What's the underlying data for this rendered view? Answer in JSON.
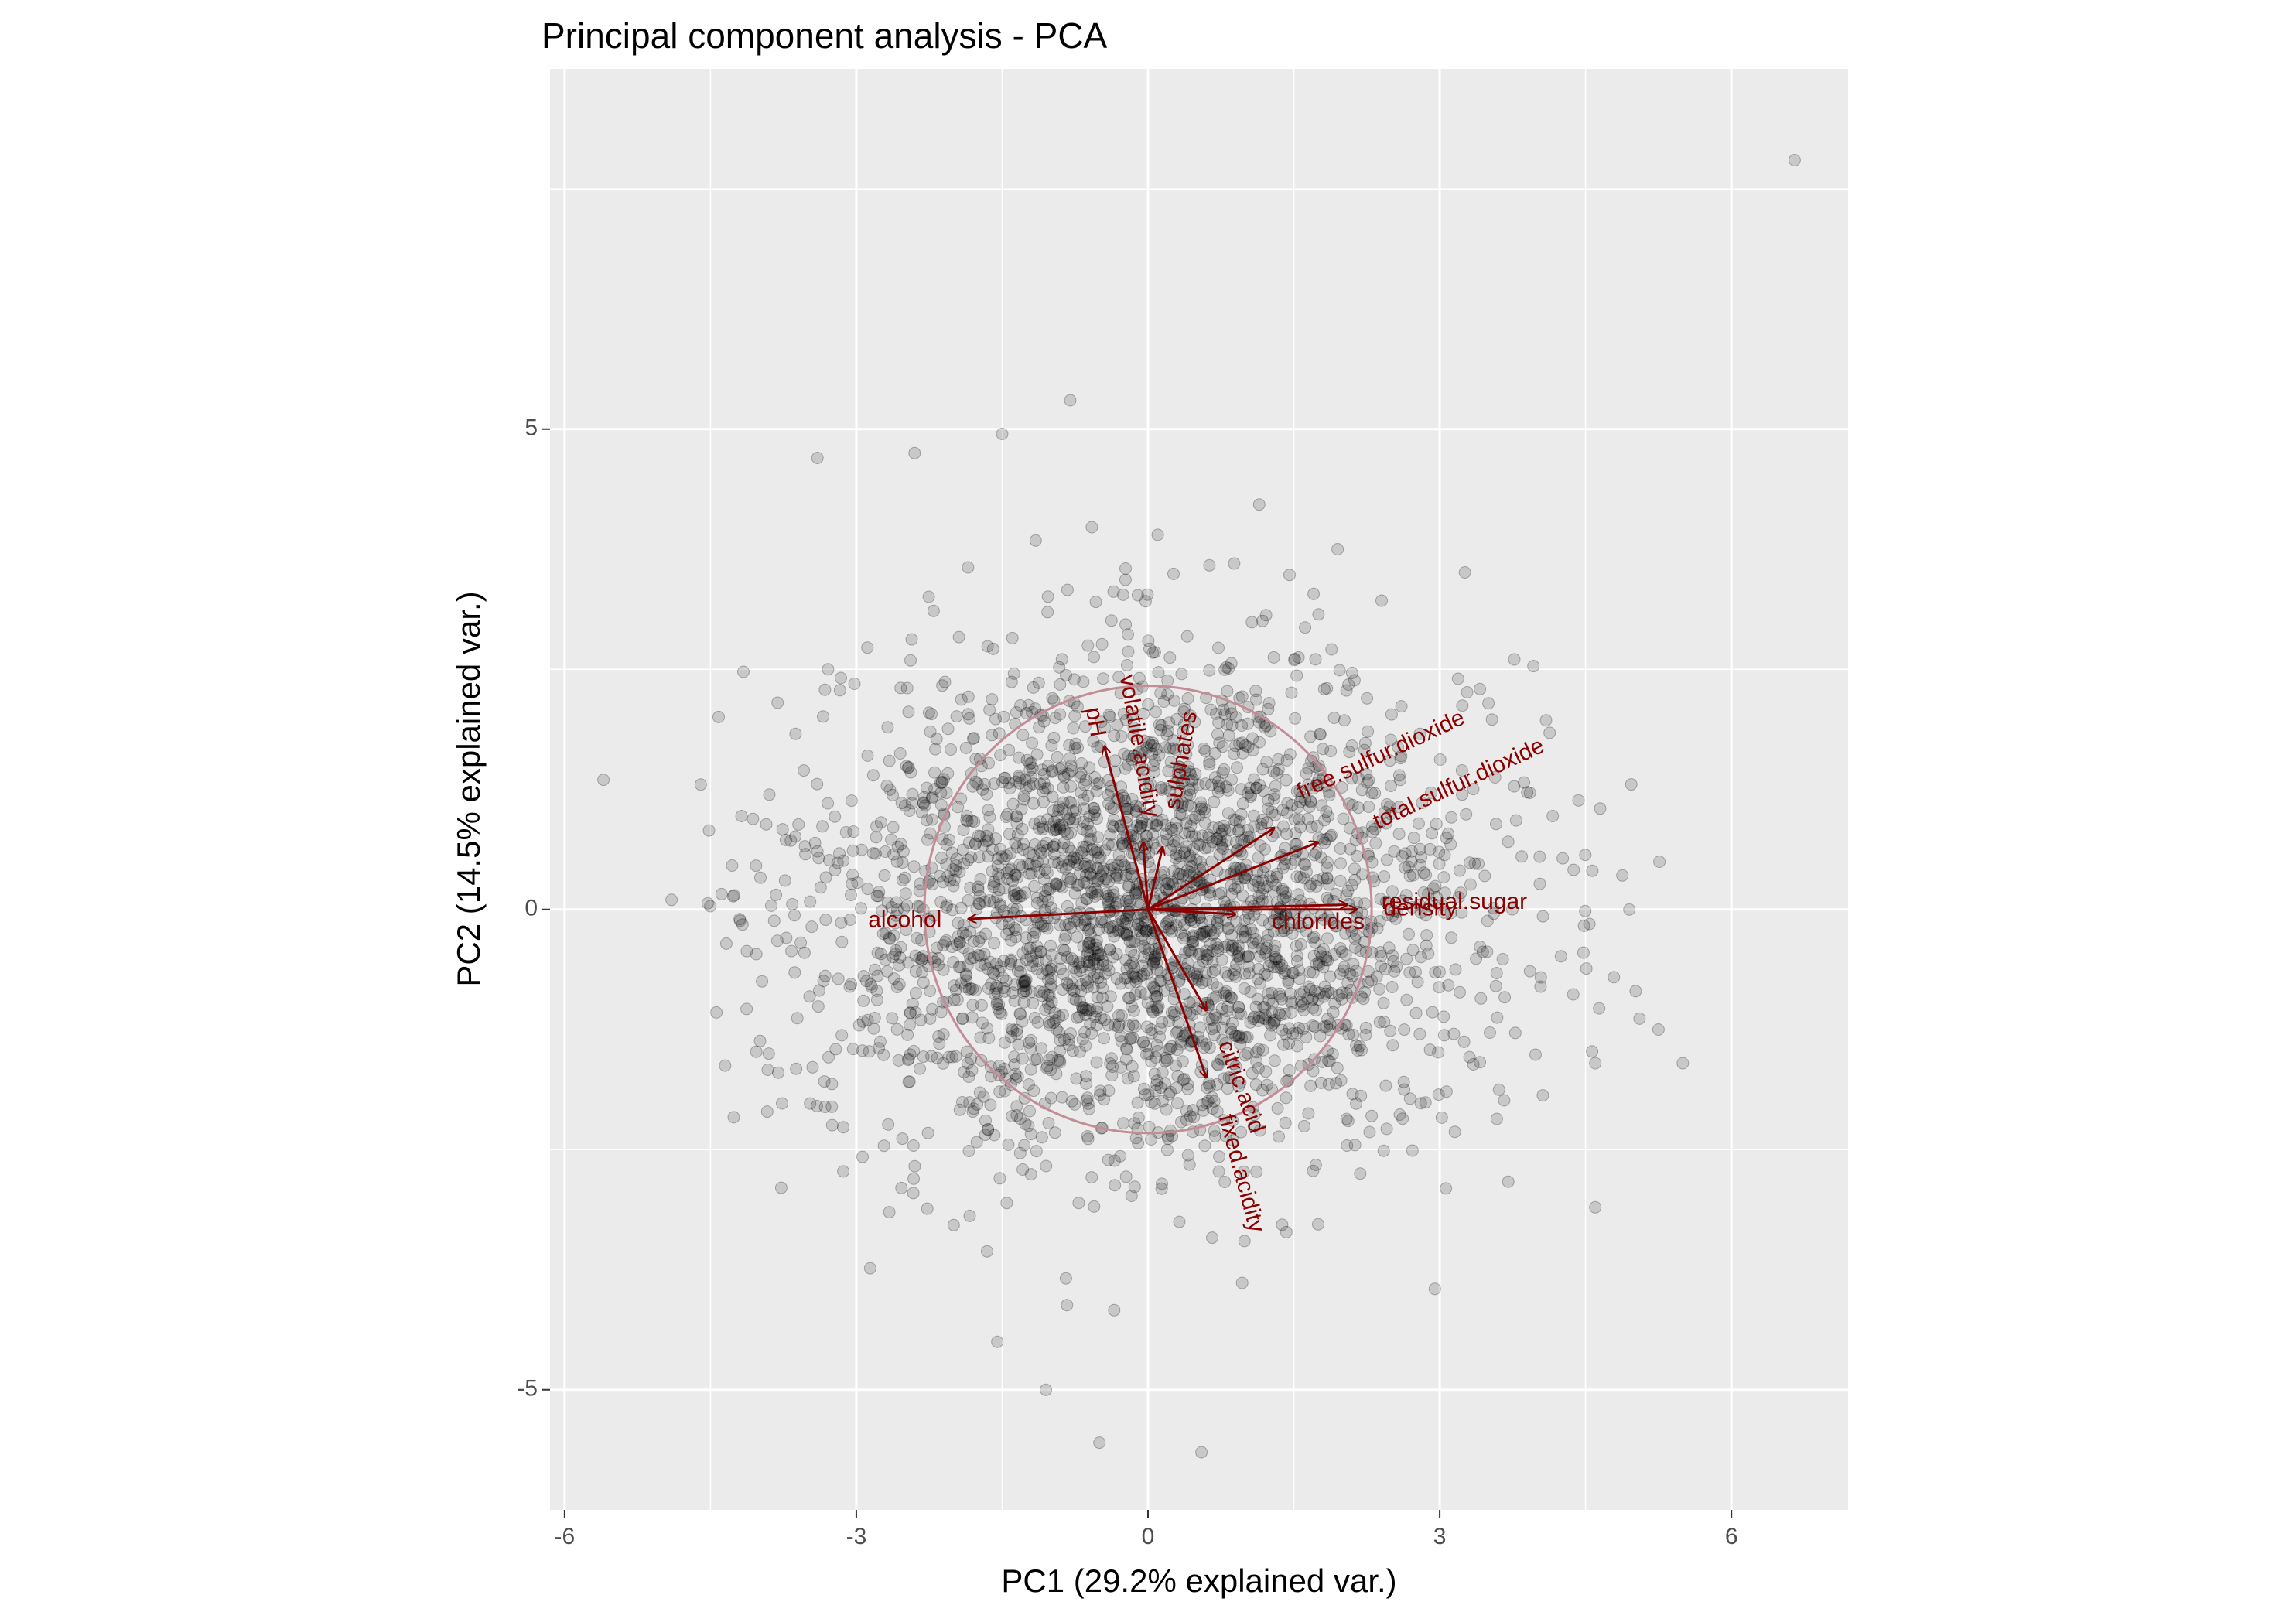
{
  "chart_data": {
    "type": "scatter",
    "title": "Principal component analysis - PCA",
    "xlabel": "PC1 (29.2% explained var.)",
    "ylabel": "PC2 (14.5% explained var.)",
    "xlim": [
      -6.15,
      7.2
    ],
    "ylim": [
      -6.25,
      8.75
    ],
    "x_ticks": [
      -6,
      -3,
      0,
      3,
      6
    ],
    "x_tick_labels": [
      "-6",
      "-3",
      "0",
      "3",
      "6"
    ],
    "y_ticks": [
      -5,
      0,
      5
    ],
    "y_tick_labels": [
      "-5",
      "0",
      "5"
    ],
    "grid": true,
    "background": "#ebebeb",
    "grid_color": "#ffffff",
    "point_color": "#000000",
    "point_alpha": 0.15,
    "arrow_color": "#8b0000",
    "circle_color": "#c28d97",
    "correlation_circle": {
      "center": [
        0,
        0
      ],
      "radius": 2.3
    },
    "scores": {
      "approx_n": 2900,
      "center": [
        0,
        0
      ],
      "sd": [
        1.72,
        1.27
      ],
      "outliers": [
        [
          6.65,
          7.8
        ],
        [
          -5.6,
          1.35
        ],
        [
          -4.6,
          1.3
        ],
        [
          -0.8,
          5.3
        ],
        [
          -3.4,
          4.7
        ],
        [
          -2.4,
          4.75
        ],
        [
          -1.5,
          4.95
        ],
        [
          5.5,
          -1.6
        ],
        [
          5.25,
          -1.25
        ],
        [
          4.6,
          -1.6
        ],
        [
          -0.5,
          -5.55
        ],
        [
          0.55,
          -5.65
        ],
        [
          -1.55,
          -4.5
        ],
        [
          -1.05,
          -5.0
        ],
        [
          4.6,
          -3.1
        ],
        [
          2.95,
          -3.95
        ],
        [
          -4.9,
          0.1
        ],
        [
          -4.2,
          -0.1
        ],
        [
          -3.9,
          -1.5
        ],
        [
          0.1,
          3.9
        ],
        [
          1.95,
          3.75
        ],
        [
          4.65,
          1.05
        ],
        [
          4.95,
          0.0
        ]
      ]
    },
    "loadings": [
      {
        "name": "pH",
        "x": -0.45,
        "y": 1.7
      },
      {
        "name": "volatile.acidity",
        "x": -0.05,
        "y": 0.7
      },
      {
        "name": "sulphates",
        "x": 0.15,
        "y": 0.65
      },
      {
        "name": "free.sulfur.dioxide",
        "x": 1.3,
        "y": 0.85
      },
      {
        "name": "total.sulfur.dioxide",
        "x": 1.75,
        "y": 0.7
      },
      {
        "name": "residual.sugar",
        "x": 2.05,
        "y": 0.05
      },
      {
        "name": "density",
        "x": 2.15,
        "y": 0.0
      },
      {
        "name": "chlorides",
        "x": 0.9,
        "y": -0.05
      },
      {
        "name": "alcohol",
        "x": -1.85,
        "y": -0.1
      },
      {
        "name": "citric.acid",
        "x": 0.6,
        "y": -1.05
      },
      {
        "name": "fixed.acidity",
        "x": 0.6,
        "y": -1.75
      }
    ],
    "loading_labels": [
      {
        "text": "pH",
        "x": -0.55,
        "y": 1.95,
        "angle": 80,
        "anchor": "middle"
      },
      {
        "text": "volatile.acidity",
        "x": -0.1,
        "y": 1.7,
        "angle": 80,
        "anchor": "middle"
      },
      {
        "text": "sulphates",
        "x": 0.35,
        "y": 1.55,
        "angle": -80,
        "anchor": "middle"
      },
      {
        "text": "free.sulfur.dioxide",
        "x": 2.4,
        "y": 1.6,
        "angle": -25,
        "anchor": "middle"
      },
      {
        "text": "total.sulfur.dioxide",
        "x": 3.2,
        "y": 1.3,
        "angle": -25,
        "anchor": "middle"
      },
      {
        "text": "residual.sugar",
        "x": 3.15,
        "y": 0.07,
        "angle": 0,
        "anchor": "middle"
      },
      {
        "text": "density",
        "x": 2.8,
        "y": 0.0,
        "angle": 0,
        "anchor": "middle"
      },
      {
        "text": "chlorides",
        "x": 1.75,
        "y": -0.14,
        "angle": 0,
        "anchor": "middle"
      },
      {
        "text": "alcohol",
        "x": -2.5,
        "y": -0.12,
        "angle": 0,
        "anchor": "middle"
      },
      {
        "text": "citric.acid",
        "x": 0.95,
        "y": -1.85,
        "angle": 70,
        "anchor": "middle"
      },
      {
        "text": "fixed.acidity",
        "x": 0.95,
        "y": -2.75,
        "angle": 75,
        "anchor": "middle"
      }
    ]
  }
}
